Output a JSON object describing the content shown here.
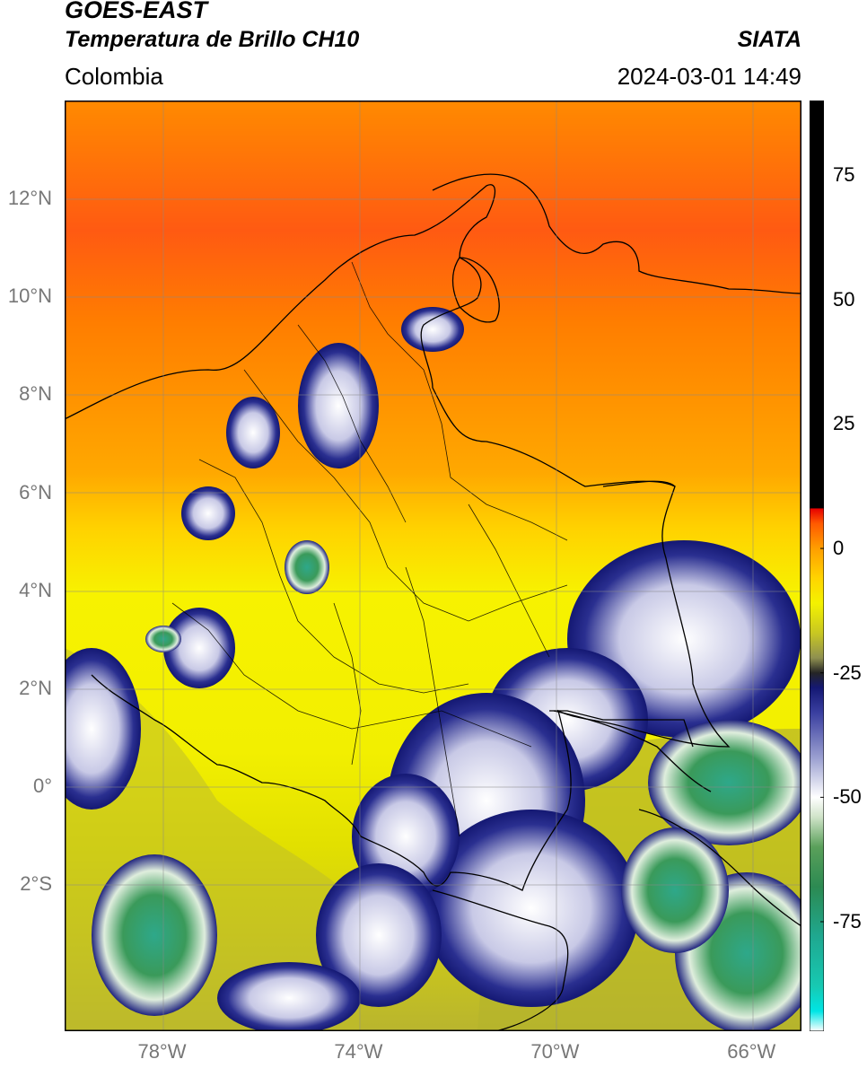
{
  "header": {
    "satellite": "GOES-EAST",
    "product": "Temperatura de Brillo CH10",
    "region": "Colombia",
    "agency": "SIATA",
    "datetime": "2024-03-01 14:49"
  },
  "map": {
    "lat_labels": [
      "12°N",
      "10°N",
      "8°N",
      "6°N",
      "4°N",
      "2°N",
      "0°",
      "2°S"
    ],
    "lat_values": [
      12,
      10,
      8,
      6,
      4,
      2,
      0,
      -2
    ],
    "lon_labels": [
      "78°W",
      "74°W",
      "70°W",
      "66°W"
    ],
    "lon_values": [
      -78,
      -74,
      -70,
      -66
    ],
    "lon_range": [
      -80,
      -65
    ],
    "lat_range": [
      -5,
      14
    ],
    "gridlines": true
  },
  "colorbar": {
    "tick_labels": [
      "75",
      "50",
      "25",
      "0",
      "-25",
      "-50",
      "-75"
    ],
    "tick_values": [
      75,
      50,
      25,
      0,
      -25,
      -50,
      -75
    ],
    "range": [
      -97,
      90
    ],
    "stops": [
      {
        "value": -97,
        "color": "#ffffff"
      },
      {
        "value": -93,
        "color": "#00e5e5"
      },
      {
        "value": -88,
        "color": "#17c9b2"
      },
      {
        "value": -78,
        "color": "#1fa890"
      },
      {
        "value": -68,
        "color": "#2c8a52"
      },
      {
        "value": -60,
        "color": "#5aa05a"
      },
      {
        "value": -54,
        "color": "#cfe3c8"
      },
      {
        "value": -50,
        "color": "#ffffff"
      },
      {
        "value": -42,
        "color": "#9a9fd0"
      },
      {
        "value": -33,
        "color": "#3a3fa0"
      },
      {
        "value": -28,
        "color": "#141873"
      },
      {
        "value": -25,
        "color": "#252525"
      },
      {
        "value": -22,
        "color": "#8f9050"
      },
      {
        "value": -17,
        "color": "#c8c722"
      },
      {
        "value": -11,
        "color": "#f4f200"
      },
      {
        "value": -6,
        "color": "#ffd400"
      },
      {
        "value": 0,
        "color": "#ff9e00"
      },
      {
        "value": 5,
        "color": "#ff5a00"
      },
      {
        "value": 8,
        "color": "#e60000"
      },
      {
        "value": 8.1,
        "color": "#000000"
      },
      {
        "value": 90,
        "color": "#000000"
      }
    ]
  }
}
